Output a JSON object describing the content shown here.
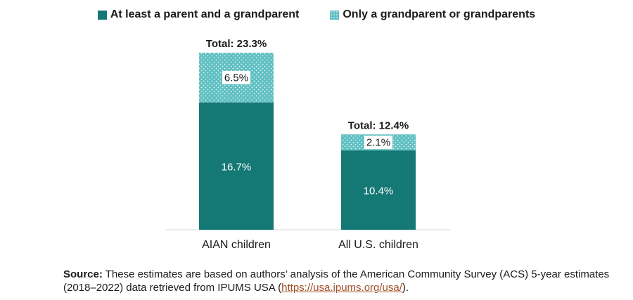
{
  "chart_data": {
    "type": "bar",
    "stacked": true,
    "categories": [
      "AIAN children",
      "All U.S. children"
    ],
    "series": [
      {
        "name": "At least a parent and a grandparent",
        "values": [
          16.7,
          10.4
        ],
        "labels": [
          "16.7%",
          "10.4%"
        ],
        "color": "#147874",
        "pattern": "solid"
      },
      {
        "name": "Only a grandparent or grandparents",
        "values": [
          6.5,
          2.1
        ],
        "labels": [
          "6.5%",
          "2.1%"
        ],
        "color": "#5fbfc2",
        "pattern": "dotted"
      }
    ],
    "totals": [
      "Total: 23.3%",
      "Total: 12.4%"
    ],
    "ylim": [
      0,
      23.3
    ],
    "grid": false,
    "legend_position": "top",
    "xlabel": "",
    "ylabel": ""
  },
  "source": {
    "label": "Source:",
    "text": " These estimates are based on authors’ analysis of the American Community Survey (ACS) 5-year estimates (2018–2022) data retrieved from IPUMS USA (",
    "link": "https://usa.ipums.org/usa/",
    "suffix": ")."
  }
}
